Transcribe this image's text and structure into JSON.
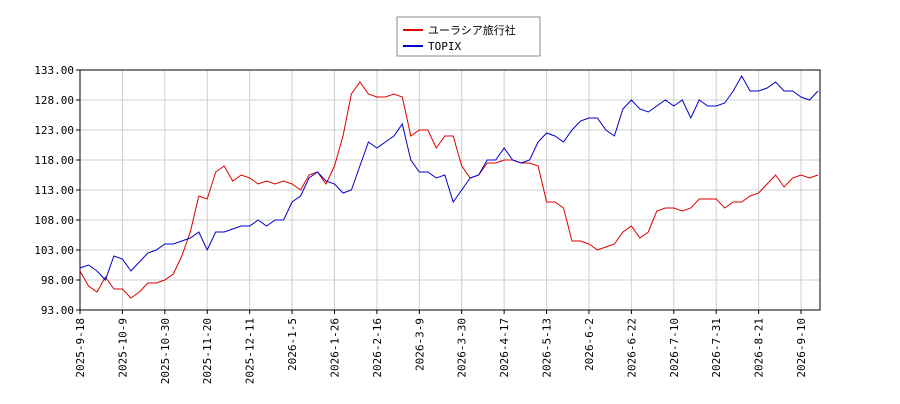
{
  "chart_data": {
    "type": "line",
    "categories": [
      "2025-9-18",
      null,
      null,
      null,
      null,
      "2025-10-9",
      null,
      null,
      null,
      null,
      "2025-10-30",
      null,
      null,
      null,
      null,
      "2025-11-20",
      null,
      null,
      null,
      null,
      "2025-12-11",
      null,
      null,
      null,
      null,
      "2026-1-5",
      null,
      null,
      null,
      null,
      "2026-1-26",
      null,
      null,
      null,
      null,
      "2026-2-16",
      null,
      null,
      null,
      null,
      "2026-3-9",
      null,
      null,
      null,
      null,
      "2026-3-30",
      null,
      null,
      null,
      null,
      "2026-4-17",
      null,
      null,
      null,
      null,
      "2026-5-13",
      null,
      null,
      null,
      null,
      "2026-6-2",
      null,
      null,
      null,
      null,
      "2026-6-22",
      null,
      null,
      null,
      null,
      "2026-7-10",
      null,
      null,
      null,
      null,
      "2026-7-31",
      null,
      null,
      null,
      null,
      "2026-8-21",
      null,
      null,
      null,
      null,
      "2026-9-10",
      null,
      null
    ],
    "series": [
      {
        "name": "ユーラシア旅行社",
        "color": "#dd0000",
        "values": [
          99.5,
          97,
          96,
          98.5,
          96.5,
          96.5,
          95,
          96,
          97.5,
          97.5,
          98,
          99,
          102,
          106,
          112,
          111.5,
          116,
          117,
          114.5,
          115.5,
          115,
          114,
          114.5,
          114,
          114.5,
          114,
          113,
          115.5,
          116,
          114,
          117,
          122,
          129,
          131,
          129,
          128.5,
          128.5,
          129,
          128.5,
          122,
          123,
          123,
          120,
          122,
          122,
          117,
          115,
          115.5,
          117.5,
          117.5,
          118,
          118,
          117.5,
          117.5,
          117,
          111,
          111,
          110,
          104.5,
          104.5,
          104,
          103,
          103.5,
          104,
          106,
          107,
          105,
          106,
          109.5,
          110,
          110,
          109.5,
          110,
          111.5,
          111.5,
          111.5,
          110,
          111,
          111,
          112,
          112.5,
          114,
          115.5,
          113.5,
          115,
          115.5,
          115,
          115.5
        ]
      },
      {
        "name": "TOPIX",
        "color": "#0000cc",
        "values": [
          100,
          100.5,
          99.5,
          98,
          102,
          101.5,
          99.5,
          101,
          102.5,
          103,
          104,
          104,
          104.5,
          105,
          106,
          103,
          106,
          106,
          106.5,
          107,
          107,
          108,
          107,
          108,
          108,
          111,
          112,
          115,
          116,
          114.5,
          114,
          112.5,
          113,
          117,
          121,
          120,
          121,
          122,
          124,
          118,
          116,
          116,
          115,
          115.5,
          111,
          113,
          115,
          115.5,
          118,
          118,
          120,
          118,
          117.5,
          118,
          121,
          122.5,
          122,
          121,
          123,
          124.5,
          125,
          125,
          123,
          122,
          126.5,
          128,
          126.5,
          126,
          127,
          128,
          127,
          128,
          125,
          128,
          127,
          127,
          127.5,
          129.5,
          132,
          129.5,
          129.5,
          130,
          131,
          129.5,
          129.5,
          128.5,
          128,
          129.5
        ]
      }
    ],
    "ylim": [
      93,
      133
    ],
    "yticks": [
      {
        "value": 93,
        "label": "93.00"
      },
      {
        "value": 98,
        "label": "98.00"
      },
      {
        "value": 103,
        "label": "103.00"
      },
      {
        "value": 108,
        "label": "108.00"
      },
      {
        "value": 113,
        "label": "113.00"
      },
      {
        "value": 118,
        "label": "118.00"
      },
      {
        "value": 123,
        "label": "123.00"
      },
      {
        "value": 128,
        "label": "128.00"
      },
      {
        "value": 133,
        "label": "133.00"
      }
    ],
    "grid": true
  }
}
